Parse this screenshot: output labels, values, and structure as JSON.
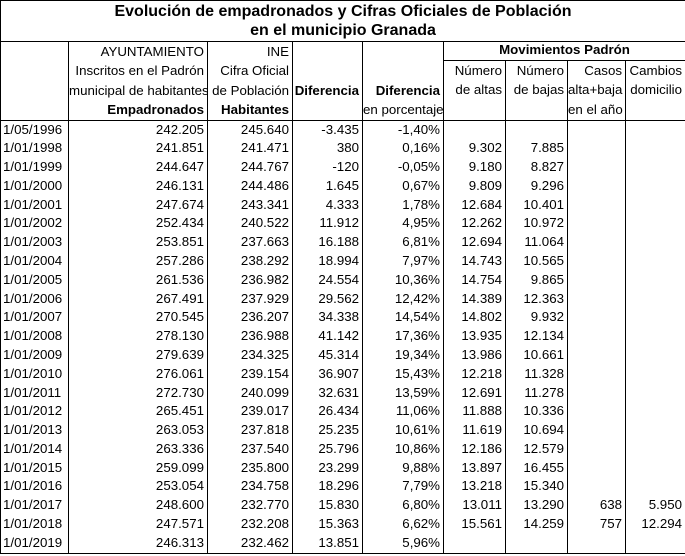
{
  "title": {
    "line1": "Evolución de empadronados y Cifras Oficiales de Población",
    "line2": "en el municipio Granada"
  },
  "header": {
    "ayuntamiento": [
      "AYUNTAMIENTO",
      "Inscritos en el Padrón",
      "municipal de habitantes",
      "Empadronados"
    ],
    "ine": [
      "INE",
      "Cifra Oficial",
      "de Población",
      "Habitantes"
    ],
    "diferencia": "Diferencia",
    "diferencia_pct": [
      "Diferencia",
      "en porcentaje"
    ],
    "movimientos": "Movimientos Padrón",
    "altas": [
      "Número",
      "de altas"
    ],
    "bajas": [
      "Número",
      "de bajas"
    ],
    "casos": [
      "Casos",
      "alta+baja",
      "en el año"
    ],
    "cambios": [
      "Cambios",
      "domicilio"
    ]
  },
  "columns": [
    "date",
    "empadronados",
    "habitantes",
    "diferencia",
    "diferencia-porcentaje",
    "numero-altas",
    "numero-bajas",
    "casos-alta-baja",
    "cambios-domicilio"
  ],
  "rows": [
    [
      "1/05/1996",
      "242.205",
      "245.640",
      "-3.435",
      "-1,40%",
      "",
      "",
      "",
      ""
    ],
    [
      "1/01/1998",
      "241.851",
      "241.471",
      "380",
      "0,16%",
      "9.302",
      "7.885",
      "",
      ""
    ],
    [
      "1/01/1999",
      "244.647",
      "244.767",
      "-120",
      "-0,05%",
      "9.180",
      "8.827",
      "",
      ""
    ],
    [
      "1/01/2000",
      "246.131",
      "244.486",
      "1.645",
      "0,67%",
      "9.809",
      "9.296",
      "",
      ""
    ],
    [
      "1/01/2001",
      "247.674",
      "243.341",
      "4.333",
      "1,78%",
      "12.684",
      "10.401",
      "",
      ""
    ],
    [
      "1/01/2002",
      "252.434",
      "240.522",
      "11.912",
      "4,95%",
      "12.262",
      "10.972",
      "",
      ""
    ],
    [
      "1/01/2003",
      "253.851",
      "237.663",
      "16.188",
      "6,81%",
      "12.694",
      "11.064",
      "",
      ""
    ],
    [
      "1/01/2004",
      "257.286",
      "238.292",
      "18.994",
      "7,97%",
      "14.743",
      "10.565",
      "",
      ""
    ],
    [
      "1/01/2005",
      "261.536",
      "236.982",
      "24.554",
      "10,36%",
      "14.754",
      "9.865",
      "",
      ""
    ],
    [
      "1/01/2006",
      "267.491",
      "237.929",
      "29.562",
      "12,42%",
      "14.389",
      "12.363",
      "",
      ""
    ],
    [
      "1/01/2007",
      "270.545",
      "236.207",
      "34.338",
      "14,54%",
      "14.802",
      "9.932",
      "",
      ""
    ],
    [
      "1/01/2008",
      "278.130",
      "236.988",
      "41.142",
      "17,36%",
      "13.935",
      "12.134",
      "",
      ""
    ],
    [
      "1/01/2009",
      "279.639",
      "234.325",
      "45.314",
      "19,34%",
      "13.986",
      "10.661",
      "",
      ""
    ],
    [
      "1/01/2010",
      "276.061",
      "239.154",
      "36.907",
      "15,43%",
      "12.218",
      "11.328",
      "",
      ""
    ],
    [
      "1/01/2011",
      "272.730",
      "240.099",
      "32.631",
      "13,59%",
      "12.691",
      "11.278",
      "",
      ""
    ],
    [
      "1/01/2012",
      "265.451",
      "239.017",
      "26.434",
      "11,06%",
      "11.888",
      "10.336",
      "",
      ""
    ],
    [
      "1/01/2013",
      "263.053",
      "237.818",
      "25.235",
      "10,61%",
      "11.619",
      "10.694",
      "",
      ""
    ],
    [
      "1/01/2014",
      "263.336",
      "237.540",
      "25.796",
      "10,86%",
      "12.186",
      "12.579",
      "",
      ""
    ],
    [
      "1/01/2015",
      "259.099",
      "235.800",
      "23.299",
      "9,88%",
      "13.897",
      "16.455",
      "",
      ""
    ],
    [
      "1/01/2016",
      "253.054",
      "234.758",
      "18.296",
      "7,79%",
      "13.218",
      "15.340",
      "",
      ""
    ],
    [
      "1/01/2017",
      "248.600",
      "232.770",
      "15.830",
      "6,80%",
      "13.011",
      "13.290",
      "638",
      "5.950"
    ],
    [
      "1/01/2018",
      "247.571",
      "232.208",
      "15.363",
      "6,62%",
      "15.561",
      "14.259",
      "757",
      "12.294"
    ],
    [
      "1/01/2019",
      "246.313",
      "232.462",
      "13.851",
      "5,96%",
      "",
      "",
      "",
      ""
    ]
  ],
  "colors": {
    "border": "#000000",
    "text": "#000000",
    "background": "#ffffff"
  }
}
